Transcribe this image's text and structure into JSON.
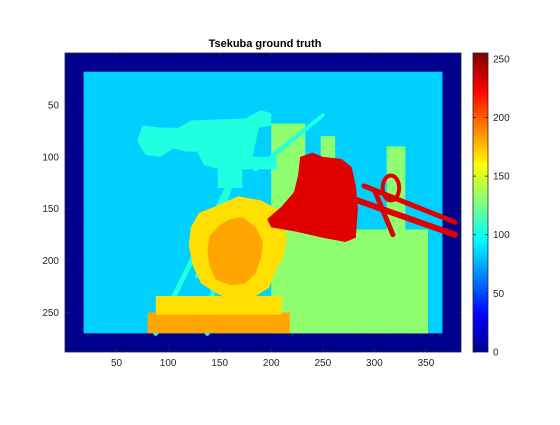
{
  "chart_data": {
    "type": "heatmap",
    "title": "Tsekuba ground truth",
    "xlabel": "",
    "ylabel": "",
    "xlim": [
      0,
      384
    ],
    "ylim": [
      288,
      0
    ],
    "x_ticks": [
      50,
      100,
      150,
      200,
      250,
      300,
      350
    ],
    "y_ticks": [
      50,
      100,
      150,
      200,
      250
    ],
    "colorbar": {
      "colormap": "jet",
      "range": [
        0,
        255
      ],
      "ticks": [
        0,
        50,
        100,
        150,
        200,
        250
      ]
    },
    "grid": false,
    "regions": [
      {
        "name": "border",
        "value": 0
      },
      {
        "name": "background wall",
        "value": 90
      },
      {
        "name": "camera and tripod",
        "value": 110
      },
      {
        "name": "shelves",
        "value": 130
      },
      {
        "name": "statue head",
        "value": 170
      },
      {
        "name": "statue face",
        "value": 190
      },
      {
        "name": "statue base",
        "value": 190
      },
      {
        "name": "lamp",
        "value": 230
      }
    ],
    "colors": {
      "0": "#00008f",
      "90": "#00d0ff",
      "110": "#20ffe0",
      "130": "#8fff70",
      "170": "#ffe000",
      "190": "#ffa600",
      "230": "#e00000"
    }
  }
}
